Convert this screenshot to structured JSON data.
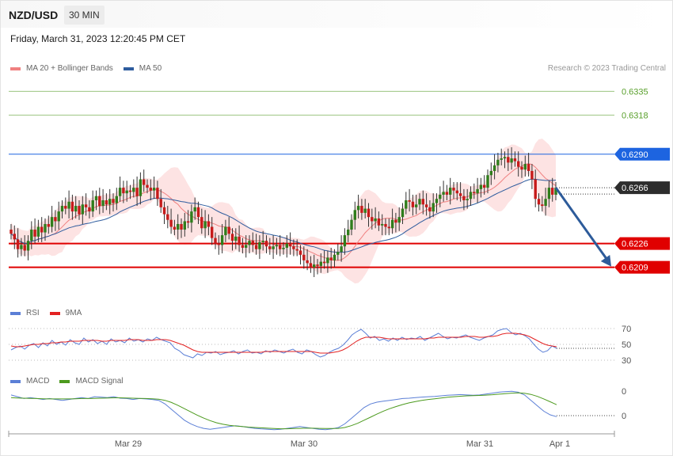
{
  "header": {
    "symbol": "NZD/USD",
    "timeframe": "30 MIN",
    "datetime": "Friday, March 31, 2023 12:20:45 PM CET",
    "credit": "Research © 2023 Trading Central"
  },
  "legends": {
    "price": [
      {
        "label": "MA 20 + Bollinger Bands",
        "color": "#f08080"
      },
      {
        "label": "MA 50",
        "color": "#2e5c9e"
      }
    ],
    "rsi": [
      {
        "label": "RSI",
        "color": "#5b7fd6"
      },
      {
        "label": "9MA",
        "color": "#e32222"
      }
    ],
    "macd": [
      {
        "label": "MACD",
        "color": "#5b7fd6"
      },
      {
        "label": "MACD Signal",
        "color": "#4c9a1e"
      }
    ]
  },
  "chart_data": [
    {
      "type": "candlestick",
      "panel": "price",
      "ylim": [
        0.6185,
        0.6346
      ],
      "x_ticks": [
        "Mar 29",
        "Mar 30",
        "Mar 31",
        "Apr 1"
      ],
      "levels": [
        {
          "label": "0.6335",
          "value": 0.6335,
          "kind": "resistance-far",
          "color": "#5aa02c"
        },
        {
          "label": "0.6318",
          "value": 0.6318,
          "kind": "resistance-far",
          "color": "#5aa02c"
        },
        {
          "label": "0.6290",
          "value": 0.629,
          "kind": "resistance",
          "color": "#1d64e0"
        },
        {
          "label": "0.6266",
          "value": 0.6266,
          "kind": "last-price",
          "color": "#2d2d2d"
        },
        {
          "label": "0.6226",
          "value": 0.6226,
          "kind": "support",
          "color": "#e00000"
        },
        {
          "label": "0.6209",
          "value": 0.6209,
          "kind": "support",
          "color": "#e00000"
        }
      ],
      "close_series": [
        0.6233,
        0.6229,
        0.6222,
        0.6225,
        0.6221,
        0.6228,
        0.6236,
        0.6231,
        0.6238,
        0.6234,
        0.624,
        0.6238,
        0.6245,
        0.6242,
        0.6249,
        0.6253,
        0.6251,
        0.6256,
        0.6249,
        0.6253,
        0.6247,
        0.6254,
        0.6252,
        0.6249,
        0.6257,
        0.626,
        0.6253,
        0.6257,
        0.6254,
        0.6258,
        0.6255,
        0.626,
        0.6266,
        0.6262,
        0.6264,
        0.6263,
        0.6266,
        0.626,
        0.6272,
        0.6268,
        0.6266,
        0.6264,
        0.6266,
        0.6258,
        0.6252,
        0.6247,
        0.6243,
        0.6238,
        0.6236,
        0.624,
        0.6236,
        0.6242,
        0.6241,
        0.6249,
        0.6252,
        0.6245,
        0.6237,
        0.6242,
        0.6238,
        0.623,
        0.6226,
        0.6225,
        0.6232,
        0.6238,
        0.6233,
        0.6228,
        0.6231,
        0.6225,
        0.6223,
        0.6225,
        0.6228,
        0.6225,
        0.6222,
        0.6227,
        0.6228,
        0.6224,
        0.6222,
        0.6224,
        0.6225,
        0.6222,
        0.6223,
        0.6226,
        0.6224,
        0.6222,
        0.6221,
        0.6218,
        0.6214,
        0.6212,
        0.6209,
        0.6211,
        0.621,
        0.6213,
        0.6212,
        0.6216,
        0.6214,
        0.6218,
        0.622,
        0.6224,
        0.6232,
        0.6236,
        0.6243,
        0.625,
        0.6253,
        0.6248,
        0.6251,
        0.6245,
        0.6242,
        0.6244,
        0.6239,
        0.624,
        0.6238,
        0.6237,
        0.6243,
        0.6241,
        0.6245,
        0.6251,
        0.6257,
        0.6256,
        0.6252,
        0.6254,
        0.6258,
        0.6254,
        0.6252,
        0.6249,
        0.6255,
        0.6258,
        0.6261,
        0.6263,
        0.6261,
        0.6266,
        0.6264,
        0.6262,
        0.626,
        0.6257,
        0.6258,
        0.6263,
        0.6262,
        0.6265,
        0.6268,
        0.6266,
        0.6275,
        0.6278,
        0.6282,
        0.6286,
        0.6287,
        0.6288,
        0.6284,
        0.6287,
        0.6285,
        0.6281,
        0.6279,
        0.6283,
        0.6278,
        0.6272,
        0.6258,
        0.6254,
        0.6253,
        0.6258,
        0.6266,
        0.6261,
        0.6266
      ],
      "x_range": [
        -1,
        163
      ],
      "annotation": {
        "type": "arrow",
        "from_index": 160,
        "from_value": 0.6266,
        "to_index": 172,
        "to_value": 0.6209,
        "color": "#2d5b9a"
      }
    },
    {
      "type": "line",
      "panel": "rsi",
      "ylim": [
        20,
        80
      ],
      "y_ticks": [
        70,
        50,
        30
      ],
      "series": [
        {
          "name": "RSI",
          "color": "#5b7fd6",
          "values": [
            43,
            46,
            48,
            44,
            49,
            51,
            46,
            52,
            48,
            55,
            50,
            53,
            49,
            56,
            52,
            50,
            58,
            53,
            56,
            51,
            54,
            50,
            57,
            53,
            55,
            52,
            58,
            54,
            56,
            53,
            57,
            55,
            59,
            56,
            54,
            52,
            45,
            42,
            37,
            35,
            33,
            38,
            36,
            40,
            39,
            41,
            37,
            39,
            40,
            42,
            38,
            41,
            43,
            39,
            40,
            38,
            42,
            40,
            43,
            41,
            39,
            42,
            44,
            40,
            38,
            43,
            41,
            37,
            34,
            36,
            40,
            43,
            45,
            49,
            55,
            62,
            66,
            69,
            64,
            58,
            60,
            55,
            57,
            54,
            58,
            55,
            59,
            56,
            58,
            57,
            60,
            55,
            58,
            61,
            64,
            60,
            57,
            59,
            58,
            60,
            62,
            59,
            57,
            55,
            58,
            60,
            62,
            67,
            69,
            70,
            65,
            62,
            64,
            61,
            57,
            50,
            44,
            40,
            42,
            48,
            45
          ]
        },
        {
          "name": "9MA",
          "color": "#e32222",
          "values": [
            48,
            47,
            47,
            48,
            49,
            50,
            50,
            51,
            51,
            52,
            52,
            53,
            53,
            54,
            54,
            54,
            55,
            55,
            55,
            55,
            54,
            54,
            55,
            55,
            55,
            55,
            56,
            56,
            56,
            55,
            55,
            55,
            56,
            56,
            56,
            55,
            53,
            51,
            49,
            46,
            43,
            41,
            40,
            40,
            40,
            40,
            40,
            40,
            40,
            40,
            40,
            40,
            40,
            40,
            40,
            40,
            41,
            41,
            41,
            41,
            41,
            41,
            41,
            41,
            41,
            41,
            41,
            40,
            39,
            39,
            39,
            40,
            41,
            43,
            46,
            50,
            54,
            57,
            59,
            59,
            59,
            59,
            58,
            57,
            57,
            57,
            57,
            57,
            57,
            57,
            57,
            57,
            58,
            58,
            59,
            59,
            59,
            59,
            59,
            59,
            60,
            60,
            60,
            59,
            59,
            60,
            60,
            61,
            63,
            64,
            64,
            64,
            63,
            62,
            60,
            57,
            54,
            51,
            49,
            48,
            47
          ]
        }
      ]
    },
    {
      "type": "line",
      "panel": "macd",
      "y_ticks": [
        0,
        0
      ],
      "series": [
        {
          "name": "MACD",
          "color": "#5b7fd6",
          "values": [
            0.3,
            0.2,
            0.1,
            0.15,
            0.1,
            0.05,
            0.1,
            0.05,
            0.0,
            0.05,
            0.1,
            0.15,
            0.1,
            0.2,
            0.18,
            0.15,
            0.2,
            0.12,
            0.1,
            0.05,
            0.1,
            0.08,
            0.05,
            0.0,
            -0.2,
            -0.5,
            -0.8,
            -1.1,
            -1.3,
            -1.45,
            -1.55,
            -1.6,
            -1.55,
            -1.5,
            -1.45,
            -1.4,
            -1.45,
            -1.5,
            -1.55,
            -1.58,
            -1.6,
            -1.62,
            -1.6,
            -1.55,
            -1.5,
            -1.45,
            -1.5,
            -1.55,
            -1.6,
            -1.62,
            -1.58,
            -1.5,
            -1.3,
            -1.0,
            -0.7,
            -0.4,
            -0.2,
            -0.1,
            -0.05,
            0.0,
            0.05,
            0.1,
            0.12,
            0.15,
            0.18,
            0.2,
            0.22,
            0.25,
            0.28,
            0.3,
            0.32,
            0.3,
            0.28,
            0.3,
            0.35,
            0.4,
            0.45,
            0.48,
            0.5,
            0.45,
            0.3,
            0.0,
            -0.3,
            -0.6,
            -0.8,
            -0.9
          ]
        },
        {
          "name": "MACD Signal",
          "color": "#4c9a1e",
          "values": [
            0.15,
            0.13,
            0.12,
            0.11,
            0.1,
            0.09,
            0.08,
            0.08,
            0.08,
            0.08,
            0.09,
            0.1,
            0.1,
            0.11,
            0.12,
            0.13,
            0.14,
            0.14,
            0.13,
            0.12,
            0.11,
            0.1,
            0.09,
            0.06,
            0.0,
            -0.12,
            -0.28,
            -0.46,
            -0.64,
            -0.82,
            -0.98,
            -1.12,
            -1.24,
            -1.32,
            -1.38,
            -1.42,
            -1.45,
            -1.48,
            -1.5,
            -1.52,
            -1.54,
            -1.56,
            -1.57,
            -1.57,
            -1.56,
            -1.55,
            -1.54,
            -1.54,
            -1.55,
            -1.56,
            -1.56,
            -1.55,
            -1.5,
            -1.4,
            -1.27,
            -1.1,
            -0.93,
            -0.76,
            -0.6,
            -0.46,
            -0.34,
            -0.23,
            -0.14,
            -0.07,
            0.0,
            0.05,
            0.09,
            0.13,
            0.17,
            0.2,
            0.23,
            0.25,
            0.26,
            0.27,
            0.29,
            0.31,
            0.34,
            0.37,
            0.4,
            0.41,
            0.39,
            0.33,
            0.22,
            0.08,
            -0.08,
            -0.24
          ]
        }
      ]
    }
  ]
}
